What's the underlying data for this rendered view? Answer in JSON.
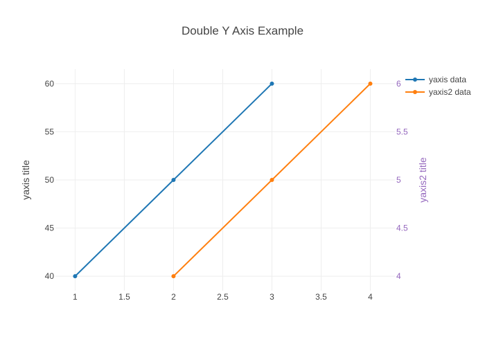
{
  "chart_data": {
    "type": "line",
    "title": "Double Y Axis Example",
    "xlabel": "",
    "ylabel": "yaxis title",
    "y2label": "yaxis2 title",
    "xlim": [
      0.8,
      4.25
    ],
    "ylim": [
      38.5,
      61.5
    ],
    "y2lim": [
      3.85,
      6.15
    ],
    "xticks": [
      1,
      1.5,
      2,
      2.5,
      3,
      3.5,
      4
    ],
    "yticks": [
      40,
      45,
      50,
      55,
      60
    ],
    "y2ticks": [
      4,
      4.5,
      5,
      5.5,
      6
    ],
    "grid": true,
    "legend_position": "top-right",
    "series": [
      {
        "name": "yaxis data",
        "axis": "y",
        "color": "#1f77b4",
        "x": [
          1,
          2,
          3
        ],
        "y": [
          40,
          50,
          60
        ]
      },
      {
        "name": "yaxis2 data",
        "axis": "y2",
        "color": "#ff7f0e",
        "x": [
          2,
          3,
          4
        ],
        "y": [
          4,
          5,
          6
        ]
      }
    ],
    "colors": {
      "y_axis_text": "#444444",
      "y2_axis_text": "#9467bd",
      "grid": "#eeeeee"
    }
  }
}
